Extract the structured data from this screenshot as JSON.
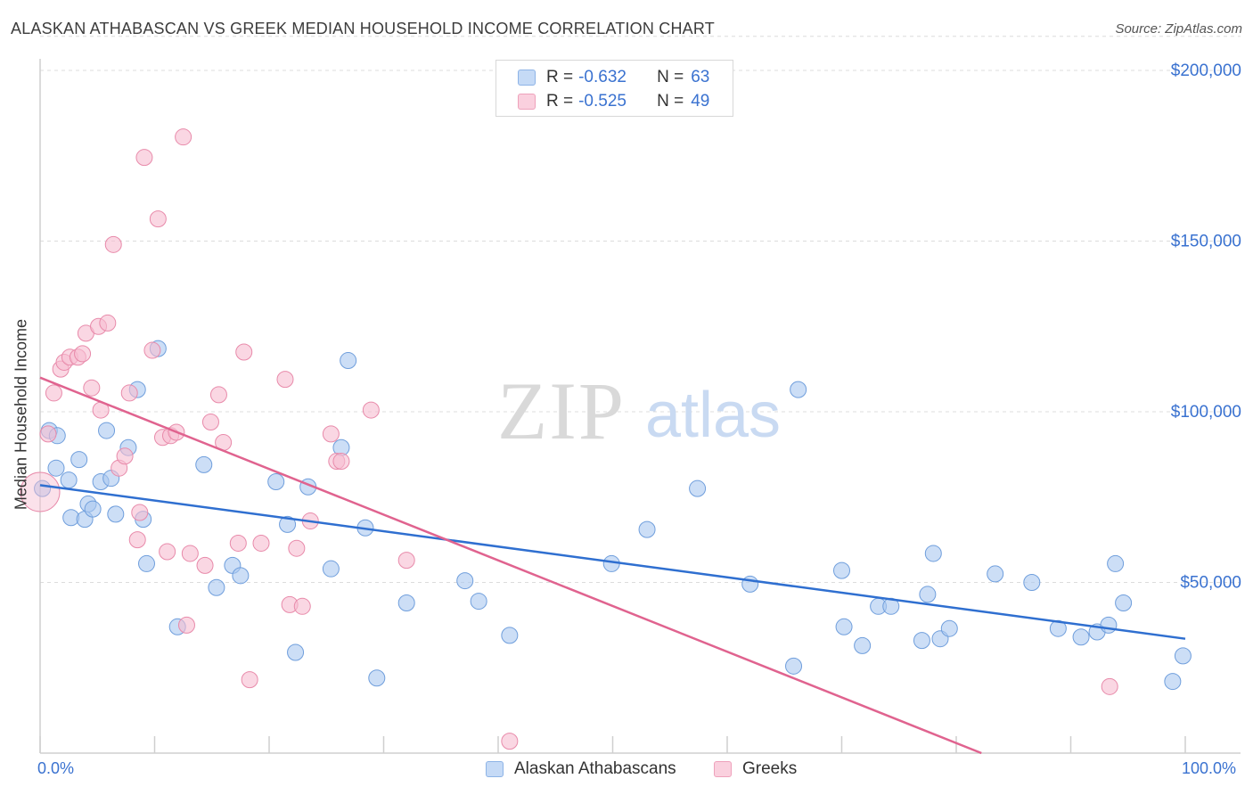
{
  "title": "ALASKAN ATHABASCAN VS GREEK MEDIAN HOUSEHOLD INCOME CORRELATION CHART",
  "source": "Source: ZipAtlas.com",
  "watermark": {
    "zip": "ZIP",
    "atlas": "atlas"
  },
  "legend": {
    "r_label": "R =",
    "n_label": "N =",
    "rows": [
      {
        "r": "-0.632",
        "n": "63"
      },
      {
        "r": "-0.525",
        "n": "49"
      }
    ]
  },
  "colors": {
    "blue_fill": "#aac8f0",
    "blue_stroke": "#6f9edc",
    "blue_line": "#2f6fd0",
    "pink_fill": "#f7bdd0",
    "pink_stroke": "#e88aaa",
    "pink_line": "#e0638f",
    "axis_text": "#3a72d0",
    "grid": "#dcdcdc"
  },
  "chart_data": {
    "type": "scatter",
    "title": "ALASKAN ATHABASCAN VS GREEK MEDIAN HOUSEHOLD INCOME CORRELATION CHART",
    "xlabel": "",
    "ylabel": "Median Household Income",
    "xlim": [
      0,
      100
    ],
    "ylim": [
      0,
      210000
    ],
    "x_tick_labels": [
      "0.0%",
      "100.0%"
    ],
    "y_ticks": [
      50000,
      100000,
      150000,
      200000
    ],
    "y_tick_labels": [
      "$50,000",
      "$100,000",
      "$150,000",
      "$200,000"
    ],
    "grid": true,
    "legend_position": "top-center",
    "series": [
      {
        "name": "Alaskan Athabascans",
        "color": "#aac8f0",
        "trend": {
          "x": [
            0,
            100
          ],
          "y": [
            78500,
            33500
          ]
        },
        "points": [
          [
            0.2,
            77500
          ],
          [
            0.8,
            94500
          ],
          [
            1.5,
            93000
          ],
          [
            1.4,
            83500
          ],
          [
            2.5,
            80000
          ],
          [
            2.7,
            69000
          ],
          [
            3.4,
            86000
          ],
          [
            3.9,
            68500
          ],
          [
            4.2,
            73000
          ],
          [
            4.6,
            71500
          ],
          [
            5.3,
            79500
          ],
          [
            5.8,
            94500
          ],
          [
            6.2,
            80500
          ],
          [
            6.6,
            70000
          ],
          [
            7.7,
            89500
          ],
          [
            8.5,
            106500
          ],
          [
            9.0,
            68500
          ],
          [
            9.3,
            55500
          ],
          [
            10.3,
            118500
          ],
          [
            12.0,
            37000
          ],
          [
            14.3,
            84500
          ],
          [
            15.4,
            48500
          ],
          [
            16.8,
            55000
          ],
          [
            17.5,
            52000
          ],
          [
            20.6,
            79500
          ],
          [
            21.6,
            67000
          ],
          [
            22.3,
            29500
          ],
          [
            23.4,
            78000
          ],
          [
            25.4,
            54000
          ],
          [
            26.3,
            89500
          ],
          [
            26.9,
            115000
          ],
          [
            28.4,
            66000
          ],
          [
            29.4,
            22000
          ],
          [
            32.0,
            44000
          ],
          [
            37.1,
            50500
          ],
          [
            38.3,
            44500
          ],
          [
            41.0,
            34500
          ],
          [
            49.9,
            55500
          ],
          [
            53.0,
            65500
          ],
          [
            57.4,
            77500
          ],
          [
            62.0,
            49500
          ],
          [
            65.8,
            25500
          ],
          [
            66.2,
            106500
          ],
          [
            70.0,
            53500
          ],
          [
            70.2,
            37000
          ],
          [
            71.8,
            31500
          ],
          [
            73.2,
            43000
          ],
          [
            74.3,
            43000
          ],
          [
            77.0,
            33000
          ],
          [
            77.5,
            46500
          ],
          [
            78.0,
            58500
          ],
          [
            78.6,
            33500
          ],
          [
            79.4,
            36500
          ],
          [
            83.4,
            52500
          ],
          [
            86.6,
            50000
          ],
          [
            88.9,
            36500
          ],
          [
            90.9,
            34000
          ],
          [
            92.3,
            35500
          ],
          [
            93.3,
            37500
          ],
          [
            93.9,
            55500
          ],
          [
            94.6,
            44000
          ],
          [
            98.9,
            21000
          ],
          [
            99.8,
            28500
          ]
        ]
      },
      {
        "name": "Greeks",
        "color": "#f7bdd0",
        "trend": {
          "x": [
            0,
            82.2
          ],
          "y": [
            110000,
            0
          ]
        },
        "points": [
          [
            0.0,
            76500
          ],
          [
            0.7,
            93500
          ],
          [
            1.2,
            105500
          ],
          [
            1.8,
            112500
          ],
          [
            2.1,
            114500
          ],
          [
            2.6,
            116000
          ],
          [
            3.3,
            116000
          ],
          [
            3.7,
            117000
          ],
          [
            4.0,
            123000
          ],
          [
            4.5,
            107000
          ],
          [
            5.1,
            125000
          ],
          [
            5.3,
            100500
          ],
          [
            5.9,
            126000
          ],
          [
            6.4,
            149000
          ],
          [
            6.9,
            83500
          ],
          [
            7.4,
            87000
          ],
          [
            7.8,
            105500
          ],
          [
            8.5,
            62500
          ],
          [
            8.7,
            70500
          ],
          [
            9.1,
            174500
          ],
          [
            9.8,
            118000
          ],
          [
            10.3,
            156500
          ],
          [
            10.7,
            92500
          ],
          [
            11.1,
            59000
          ],
          [
            11.4,
            93000
          ],
          [
            11.9,
            94000
          ],
          [
            12.5,
            180500
          ],
          [
            12.8,
            37500
          ],
          [
            13.1,
            58500
          ],
          [
            14.4,
            55000
          ],
          [
            14.9,
            97000
          ],
          [
            15.6,
            105000
          ],
          [
            16.0,
            91000
          ],
          [
            17.3,
            61500
          ],
          [
            17.8,
            117500
          ],
          [
            18.3,
            21500
          ],
          [
            19.3,
            61500
          ],
          [
            21.4,
            109500
          ],
          [
            21.8,
            43500
          ],
          [
            22.4,
            60000
          ],
          [
            22.9,
            43000
          ],
          [
            23.6,
            68000
          ],
          [
            25.4,
            93500
          ],
          [
            25.9,
            85500
          ],
          [
            26.3,
            85500
          ],
          [
            28.9,
            100500
          ],
          [
            32.0,
            56500
          ],
          [
            41.0,
            3500
          ],
          [
            93.4,
            19500
          ]
        ]
      }
    ]
  }
}
